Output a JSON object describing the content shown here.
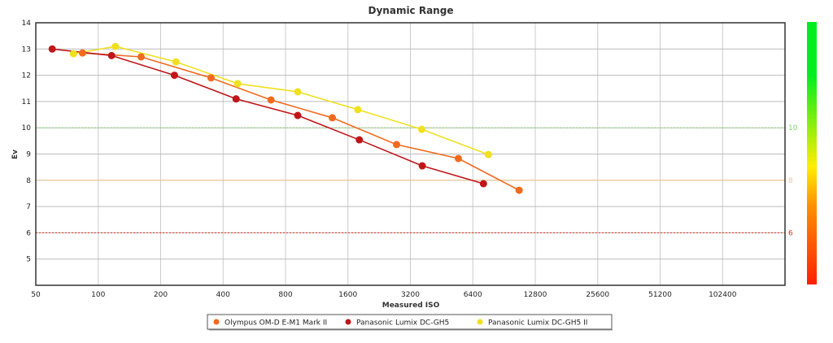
{
  "chart_data": {
    "type": "line",
    "title": "Dynamic Range",
    "xlabel": "Measured ISO",
    "ylabel": "Ev",
    "x_scale": "log2",
    "xlim": [
      50,
      204800
    ],
    "ylim": [
      4,
      14
    ],
    "x_ticks": [
      "50",
      "100",
      "200",
      "400",
      "800",
      "1600",
      "3200",
      "6400",
      "12800",
      "25600",
      "51200",
      "102400"
    ],
    "y_ticks": [
      "5",
      "6",
      "7",
      "8",
      "9",
      "10",
      "11",
      "12",
      "13",
      "14"
    ],
    "grid": true,
    "legend_position": "bottom",
    "reference_lines": [
      {
        "value": 10,
        "label": "10",
        "color": "#7fd36a",
        "style": "dotted"
      },
      {
        "value": 8,
        "label": "8",
        "color": "#f0c890",
        "style": "solid"
      },
      {
        "value": 6,
        "label": "6",
        "color": "#e03020",
        "style": "dotted"
      }
    ],
    "colorbar": {
      "colors": [
        "#ff2000",
        "#ff8000",
        "#ffee00",
        "#00ee20"
      ]
    },
    "series": [
      {
        "name": "Olympus OM-D E-M1 Mark II",
        "color": "#f26a1e",
        "x": [
          84,
          161,
          350,
          681,
          1345,
          2745,
          5450,
          10700
        ],
        "y": [
          12.85,
          12.7,
          11.9,
          11.06,
          10.38,
          9.36,
          8.83,
          7.62
        ]
      },
      {
        "name": "Panasonic Lumix DC-GH5",
        "color": "#c0161a",
        "x": [
          60,
          116,
          233,
          462,
          916,
          1815,
          3650,
          7200
        ],
        "y": [
          13.0,
          12.75,
          12.0,
          11.1,
          10.47,
          9.54,
          8.55,
          7.87
        ]
      },
      {
        "name": "Panasonic Lumix DC-GH5 II",
        "color": "#f0e020",
        "x": [
          76,
          121,
          237,
          470,
          916,
          1785,
          3630,
          7600
        ],
        "y": [
          12.82,
          13.1,
          12.51,
          11.68,
          11.37,
          10.69,
          9.94,
          8.98
        ]
      }
    ]
  }
}
